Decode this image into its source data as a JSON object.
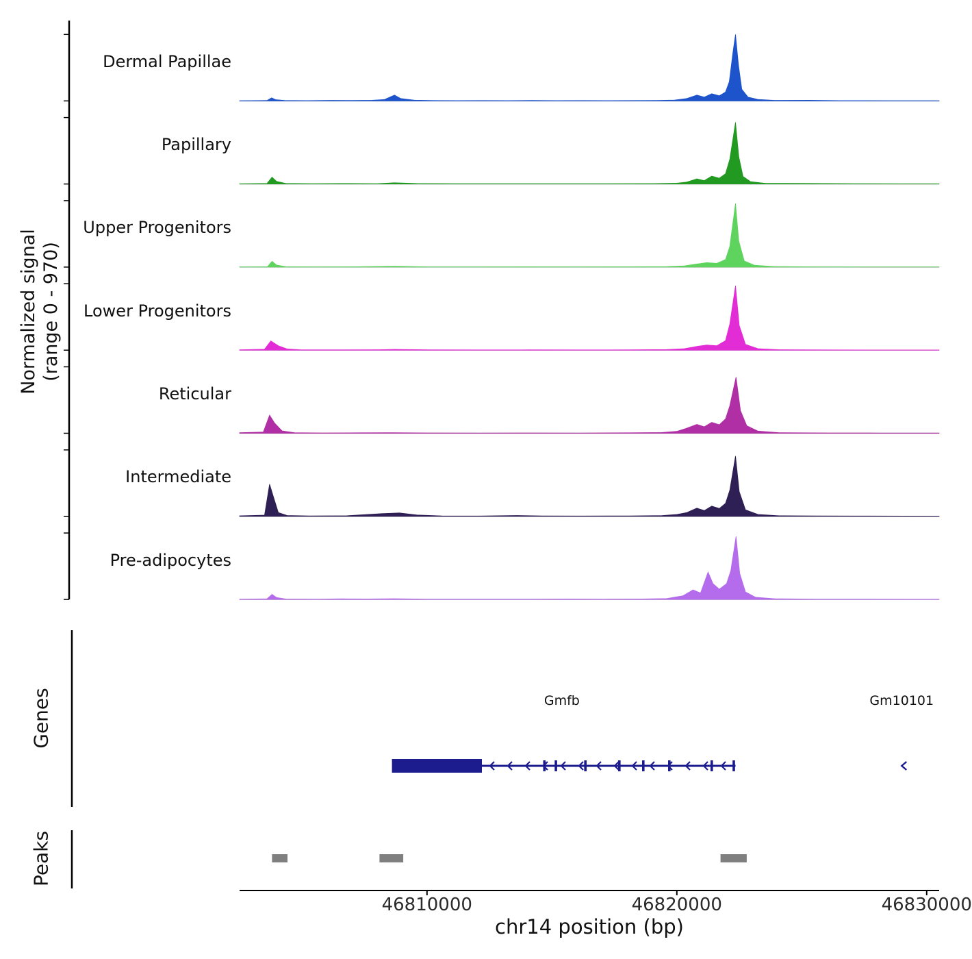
{
  "figure": {
    "ylabel_line1": "Normalized signal",
    "ylabel_line2": "(range 0 - 970)",
    "genes_label": "Genes",
    "peaks_label": "Peaks"
  },
  "chart_data": {
    "type": "area",
    "title": "",
    "x_axis": {
      "label": "chr14 position (bp)",
      "min": 46802500,
      "max": 46830500,
      "ticks": [
        {
          "pos": 46810000,
          "label": "46810000"
        },
        {
          "pos": 46820000,
          "label": "46820000"
        },
        {
          "pos": 46830000,
          "label": "46830000"
        }
      ]
    },
    "y_axis": {
      "label": "Normalized signal (range 0 - 970)",
      "min": 0,
      "max": 970
    },
    "peaks_color": "#7f7f7f",
    "series": [
      {
        "name": "Dermal Papillae",
        "color": "#1d53cb",
        "points": [
          [
            46802500,
            3
          ],
          [
            46803600,
            6
          ],
          [
            46803780,
            45
          ],
          [
            46803950,
            18
          ],
          [
            46804300,
            6
          ],
          [
            46805200,
            4
          ],
          [
            46806200,
            8
          ],
          [
            46807000,
            6
          ],
          [
            46807800,
            9
          ],
          [
            46808300,
            20
          ],
          [
            46808700,
            85
          ],
          [
            46808950,
            35
          ],
          [
            46809500,
            10
          ],
          [
            46810300,
            5
          ],
          [
            46811200,
            4
          ],
          [
            46812200,
            5
          ],
          [
            46813200,
            4
          ],
          [
            46814200,
            6
          ],
          [
            46815200,
            4
          ],
          [
            46816200,
            5
          ],
          [
            46817200,
            4
          ],
          [
            46818200,
            5
          ],
          [
            46819200,
            7
          ],
          [
            46819900,
            12
          ],
          [
            46820400,
            35
          ],
          [
            46820800,
            85
          ],
          [
            46821100,
            55
          ],
          [
            46821400,
            105
          ],
          [
            46821700,
            75
          ],
          [
            46821950,
            130
          ],
          [
            46822100,
            280
          ],
          [
            46822250,
            720
          ],
          [
            46822350,
            970
          ],
          [
            46822470,
            520
          ],
          [
            46822600,
            170
          ],
          [
            46822850,
            55
          ],
          [
            46823250,
            22
          ],
          [
            46823900,
            8
          ],
          [
            46825300,
            9
          ],
          [
            46826500,
            4
          ],
          [
            46828600,
            3
          ],
          [
            46830500,
            3
          ]
        ]
      },
      {
        "name": "Papillary",
        "color": "#229a22",
        "points": [
          [
            46802500,
            3
          ],
          [
            46803600,
            8
          ],
          [
            46803800,
            100
          ],
          [
            46803980,
            38
          ],
          [
            46804350,
            8
          ],
          [
            46805400,
            5
          ],
          [
            46806600,
            7
          ],
          [
            46808000,
            5
          ],
          [
            46808700,
            18
          ],
          [
            46809600,
            7
          ],
          [
            46811100,
            4
          ],
          [
            46813100,
            4
          ],
          [
            46815100,
            5
          ],
          [
            46817100,
            4
          ],
          [
            46819100,
            6
          ],
          [
            46820000,
            12
          ],
          [
            46820400,
            28
          ],
          [
            46820800,
            75
          ],
          [
            46821100,
            50
          ],
          [
            46821400,
            115
          ],
          [
            46821700,
            85
          ],
          [
            46821950,
            150
          ],
          [
            46822120,
            360
          ],
          [
            46822350,
            900
          ],
          [
            46822480,
            400
          ],
          [
            46822650,
            110
          ],
          [
            46822950,
            35
          ],
          [
            46823550,
            10
          ],
          [
            46825300,
            8
          ],
          [
            46827100,
            5
          ],
          [
            46829100,
            3
          ],
          [
            46830500,
            3
          ]
        ]
      },
      {
        "name": "Upper Progenitors",
        "color": "#5ed45e",
        "points": [
          [
            46802500,
            3
          ],
          [
            46803620,
            6
          ],
          [
            46803800,
            85
          ],
          [
            46803980,
            30
          ],
          [
            46804350,
            6
          ],
          [
            46805600,
            4
          ],
          [
            46807100,
            5
          ],
          [
            46808700,
            13
          ],
          [
            46810100,
            4
          ],
          [
            46812100,
            4
          ],
          [
            46814100,
            5
          ],
          [
            46816100,
            4
          ],
          [
            46818100,
            5
          ],
          [
            46819600,
            8
          ],
          [
            46820300,
            18
          ],
          [
            46820800,
            45
          ],
          [
            46821200,
            65
          ],
          [
            46821600,
            55
          ],
          [
            46821950,
            110
          ],
          [
            46822120,
            300
          ],
          [
            46822350,
            930
          ],
          [
            46822480,
            380
          ],
          [
            46822700,
            90
          ],
          [
            46823100,
            28
          ],
          [
            46823900,
            8
          ],
          [
            46825600,
            4
          ],
          [
            46827600,
            3
          ],
          [
            46830500,
            3
          ]
        ]
      },
      {
        "name": "Lower Progenitors",
        "color": "#e22cd6",
        "points": [
          [
            46802500,
            6
          ],
          [
            46803500,
            14
          ],
          [
            46803750,
            135
          ],
          [
            46804050,
            65
          ],
          [
            46804400,
            18
          ],
          [
            46804900,
            7
          ],
          [
            46806100,
            5
          ],
          [
            46808100,
            7
          ],
          [
            46808700,
            12
          ],
          [
            46810100,
            5
          ],
          [
            46812100,
            4
          ],
          [
            46814100,
            5
          ],
          [
            46816100,
            4
          ],
          [
            46818100,
            5
          ],
          [
            46819600,
            9
          ],
          [
            46820300,
            22
          ],
          [
            46820800,
            55
          ],
          [
            46821200,
            75
          ],
          [
            46821600,
            65
          ],
          [
            46821950,
            140
          ],
          [
            46822120,
            380
          ],
          [
            46822350,
            940
          ],
          [
            46822500,
            360
          ],
          [
            46822750,
            85
          ],
          [
            46823250,
            22
          ],
          [
            46824100,
            7
          ],
          [
            46826100,
            4
          ],
          [
            46828100,
            3
          ],
          [
            46830500,
            3
          ]
        ]
      },
      {
        "name": "Reticular",
        "color": "#b02fa5",
        "points": [
          [
            46802500,
            8
          ],
          [
            46803450,
            18
          ],
          [
            46803700,
            265
          ],
          [
            46803900,
            150
          ],
          [
            46804200,
            35
          ],
          [
            46804700,
            9
          ],
          [
            46805800,
            5
          ],
          [
            46807300,
            7
          ],
          [
            46808600,
            9
          ],
          [
            46810100,
            5
          ],
          [
            46812100,
            4
          ],
          [
            46814100,
            5
          ],
          [
            46816100,
            4
          ],
          [
            46818100,
            7
          ],
          [
            46819400,
            11
          ],
          [
            46820000,
            28
          ],
          [
            46820400,
            75
          ],
          [
            46820800,
            130
          ],
          [
            46821100,
            95
          ],
          [
            46821400,
            160
          ],
          [
            46821700,
            125
          ],
          [
            46821950,
            210
          ],
          [
            46822120,
            400
          ],
          [
            46822370,
            820
          ],
          [
            46822550,
            330
          ],
          [
            46822800,
            110
          ],
          [
            46823250,
            32
          ],
          [
            46824100,
            9
          ],
          [
            46826100,
            5
          ],
          [
            46828100,
            4
          ],
          [
            46830500,
            3
          ]
        ]
      },
      {
        "name": "Intermediate",
        "color": "#2e1f55",
        "points": [
          [
            46802500,
            8
          ],
          [
            46803500,
            18
          ],
          [
            46803700,
            470
          ],
          [
            46803850,
            290
          ],
          [
            46804050,
            55
          ],
          [
            46804400,
            13
          ],
          [
            46805300,
            7
          ],
          [
            46806800,
            9
          ],
          [
            46808200,
            40
          ],
          [
            46808900,
            50
          ],
          [
            46809600,
            20
          ],
          [
            46810600,
            7
          ],
          [
            46812100,
            5
          ],
          [
            46813600,
            13
          ],
          [
            46814600,
            7
          ],
          [
            46816100,
            5
          ],
          [
            46818100,
            7
          ],
          [
            46819400,
            11
          ],
          [
            46820000,
            28
          ],
          [
            46820400,
            55
          ],
          [
            46820800,
            120
          ],
          [
            46821100,
            85
          ],
          [
            46821400,
            150
          ],
          [
            46821700,
            115
          ],
          [
            46821950,
            190
          ],
          [
            46822120,
            380
          ],
          [
            46822350,
            880
          ],
          [
            46822500,
            360
          ],
          [
            46822750,
            95
          ],
          [
            46823250,
            28
          ],
          [
            46824100,
            9
          ],
          [
            46825600,
            7
          ],
          [
            46827100,
            5
          ],
          [
            46829100,
            4
          ],
          [
            46830500,
            3
          ]
        ]
      },
      {
        "name": "Pre-adipocytes",
        "color": "#b46cec",
        "points": [
          [
            46802500,
            5
          ],
          [
            46803600,
            9
          ],
          [
            46803800,
            75
          ],
          [
            46803980,
            28
          ],
          [
            46804350,
            7
          ],
          [
            46805600,
            5
          ],
          [
            46806600,
            9
          ],
          [
            46807600,
            7
          ],
          [
            46808700,
            11
          ],
          [
            46810100,
            5
          ],
          [
            46812100,
            4
          ],
          [
            46814100,
            5
          ],
          [
            46815600,
            7
          ],
          [
            46817100,
            5
          ],
          [
            46818600,
            7
          ],
          [
            46819600,
            13
          ],
          [
            46820250,
            55
          ],
          [
            46820650,
            140
          ],
          [
            46820950,
            95
          ],
          [
            46821250,
            400
          ],
          [
            46821450,
            230
          ],
          [
            46821700,
            150
          ],
          [
            46821990,
            230
          ],
          [
            46822160,
            420
          ],
          [
            46822370,
            920
          ],
          [
            46822520,
            380
          ],
          [
            46822750,
            110
          ],
          [
            46823150,
            32
          ],
          [
            46823950,
            10
          ],
          [
            46825600,
            5
          ],
          [
            46827600,
            4
          ],
          [
            46830500,
            3
          ]
        ]
      }
    ],
    "genes": [
      {
        "name": "Gmfb",
        "strand": "-",
        "color": "#1c1c8f",
        "thick_start": 46808600,
        "thick_end": 46812200,
        "line_start": 46812200,
        "line_end": 46822350,
        "exon_ticks": [
          46814700,
          46815160,
          46816340,
          46817700,
          46818660,
          46819700,
          46821400,
          46822280
        ],
        "label_pos": 46815400
      },
      {
        "name": "Gm10101",
        "strand": "-",
        "color": "#1c1c8f",
        "arrow_pos": 46829000,
        "label_pos": 46829000
      }
    ],
    "peaks": [
      {
        "start": 46803800,
        "end": 46804420
      },
      {
        "start": 46808100,
        "end": 46809050
      },
      {
        "start": 46821750,
        "end": 46822800
      }
    ]
  }
}
